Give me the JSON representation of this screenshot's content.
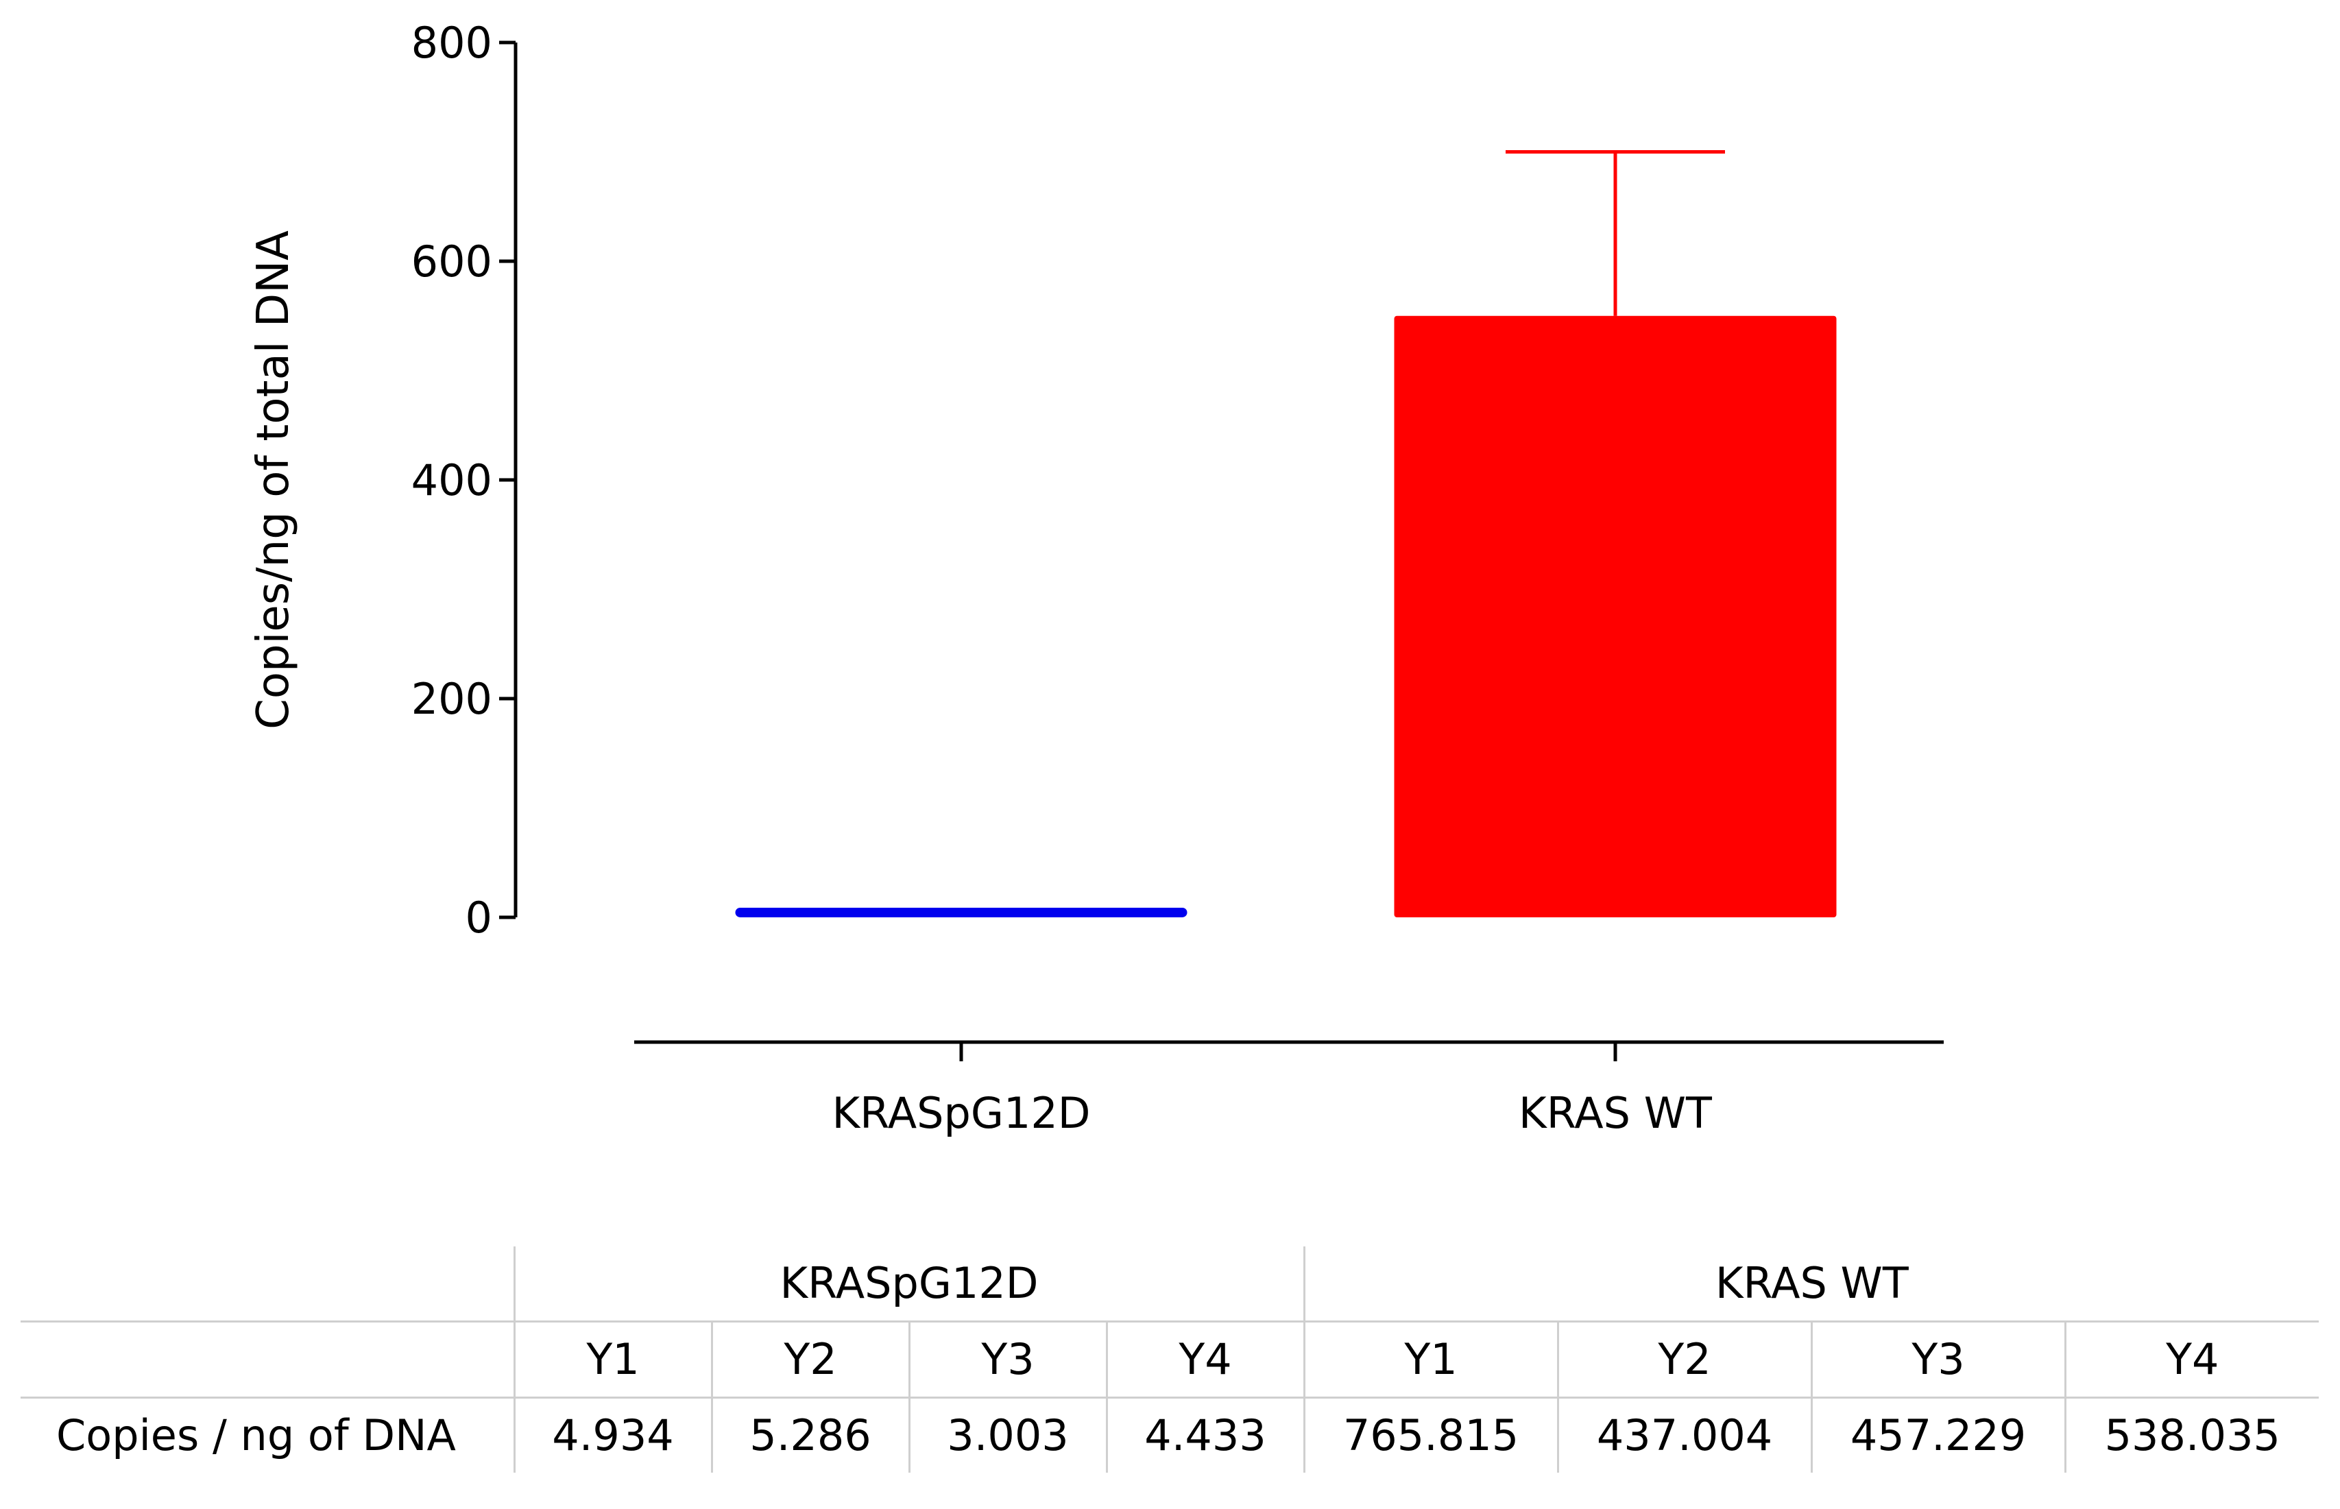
{
  "chart_data": {
    "type": "bar",
    "categories": [
      "KRASpG12D",
      "KRAS WT"
    ],
    "values": [
      4.4,
      550
    ],
    "error_upper": [
      null,
      700
    ],
    "ylabel": "Copies/ng of total DNA",
    "xlabel": "",
    "ylim": [
      0,
      800
    ],
    "yticks": [
      0,
      200,
      400,
      600,
      800
    ],
    "bar_colors": [
      "#0000ee",
      "#ff0000"
    ],
    "grid": false
  },
  "table": {
    "groups": [
      "KRASpG12D",
      "KRAS WT"
    ],
    "subheaders": [
      "Y1",
      "Y2",
      "Y3",
      "Y4",
      "Y1",
      "Y2",
      "Y3",
      "Y4"
    ],
    "row_label": "Copies / ng of DNA",
    "values": [
      "4.934",
      "5.286",
      "3.003",
      "4.433",
      "765.815",
      "437.004",
      "457.229",
      "538.035"
    ]
  }
}
